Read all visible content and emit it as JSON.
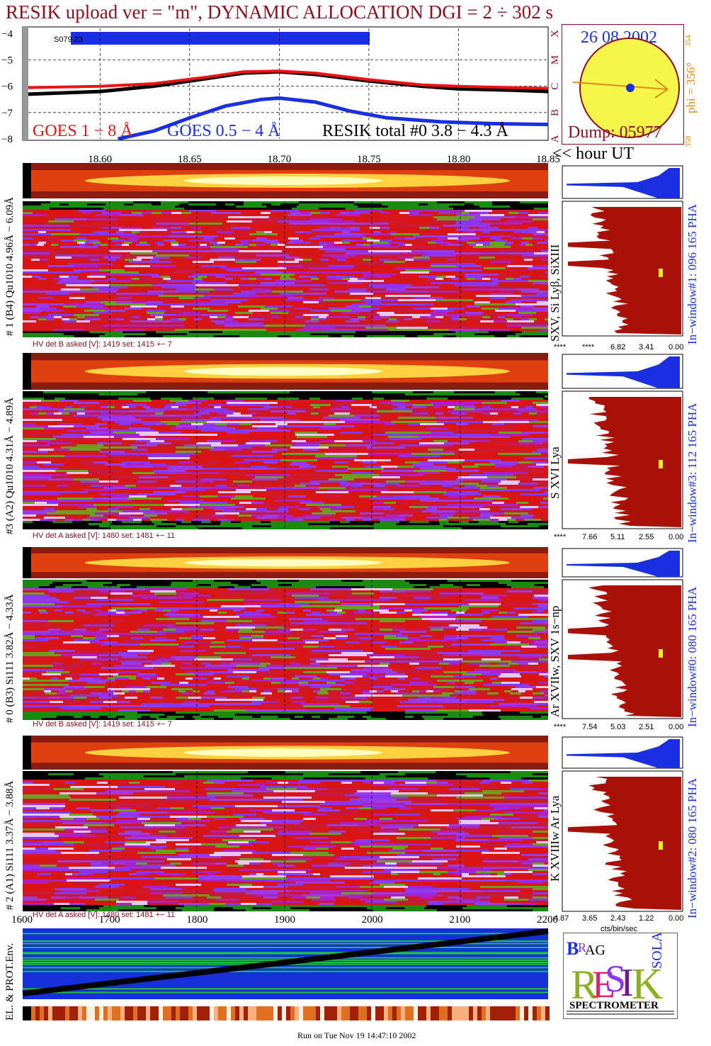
{
  "title": "RESIK upload ver = \"m\", DYNAMIC ALLOCATION  DGI =   2 ÷ 302 s",
  "colors": {
    "title": "#8b1020",
    "goes_long": "#ee1111",
    "goes_short": "#1a2fe0",
    "resik_total": "#000000",
    "spectrum_low": "#d81616",
    "spectrum_mid": "#8a35f0",
    "pha_fill_red": "#a81008",
    "pha_fill_blue": "#1a2fe0",
    "env_bg": "#1530d8",
    "sun_fill": "#f6f64a",
    "orange": "#e08a10"
  },
  "lightcurve": {
    "y_ticks": [
      "−4",
      "−5",
      "−6",
      "−7",
      "−8"
    ],
    "x_ticks": [
      "18.60",
      "18.65",
      "18.70",
      "18.75",
      "18.80",
      "18.85"
    ],
    "x_unit": "<< hour UT",
    "class_letters": [
      "X",
      "M",
      "C",
      "B",
      "A"
    ],
    "legend_goes_long": "GOES 1 − 8 Å",
    "legend_goes_short": "GOES 0.5 − 4 Å",
    "legend_resik": "RESIK total #0  3.8 − 4.3 Å",
    "bar_label": "S079 23"
  },
  "chart_data": {
    "type": "line",
    "xlabel": "hour UT",
    "ylabel": "",
    "xlim": [
      18.56,
      18.85
    ],
    "ylim": [
      -8,
      -3.8
    ],
    "series": [
      {
        "name": "GOES 1 − 8 Å",
        "x": [
          18.56,
          18.6,
          18.63,
          18.66,
          18.68,
          18.7,
          18.72,
          18.75,
          18.78,
          18.8,
          18.83,
          18.85
        ],
        "values": [
          -6.05,
          -6.0,
          -5.9,
          -5.65,
          -5.45,
          -5.42,
          -5.5,
          -5.75,
          -5.95,
          -6.0,
          -6.05,
          -6.08
        ]
      },
      {
        "name": "GOES 0.5 − 4 Å",
        "x": [
          18.61,
          18.63,
          18.65,
          18.67,
          18.69,
          18.7,
          18.72,
          18.74,
          18.76,
          18.79,
          18.82,
          18.85
        ],
        "values": [
          -8.0,
          -7.7,
          -7.2,
          -6.75,
          -6.5,
          -6.45,
          -6.6,
          -6.95,
          -7.2,
          -7.35,
          -7.42,
          -7.45
        ]
      },
      {
        "name": "RESIK total #0  3.8 − 4.3 Å",
        "x": [
          18.56,
          18.6,
          18.63,
          18.66,
          18.68,
          18.7,
          18.72,
          18.75,
          18.78,
          18.8,
          18.83,
          18.85
        ],
        "values": [
          -6.3,
          -6.2,
          -6.0,
          -5.7,
          -5.5,
          -5.45,
          -5.55,
          -5.8,
          -6.0,
          -6.1,
          -6.15,
          -6.2
        ]
      }
    ]
  },
  "sun_panel": {
    "date": "26 08 2002",
    "phi": "phi = 356°",
    "phi_small_top": "354",
    "phi_small_bottom": "358",
    "dump": "Dump: 05977"
  },
  "detectors": [
    {
      "axis_label": "# 1 (B4) Qu1010 4.96Å − 6.09Å",
      "line_label": "SXV, Si Lyβ, SiXIII",
      "window_label": "In−window#1:  096 165 PHA",
      "hv": "HV det B asked [V]:  1419 set:  1415 +−   7",
      "pha_ticks": [
        "****",
        "****",
        "6.82",
        "3.41",
        "0.00"
      ]
    },
    {
      "axis_label": "#3 (A2) Qu1010  4.31Å − 4.89Å",
      "line_label": "S XVI Lya",
      "window_label": "In−window#3:  112 165 PHA",
      "hv": "HV det A asked [V]:  1480 set:  1481 +−   11",
      "pha_ticks": [
        "****",
        "7.66",
        "5.11",
        "2.55",
        "0.00"
      ]
    },
    {
      "axis_label": "# 0 (B3) Si111  3.82Å − 4.33Å",
      "line_label": "Ar XVIIw,  SXV 1s−np",
      "window_label": "In−window#0:  080 165 PHA",
      "hv": "HV det B asked [V]:  1419 set:  1415 +−   7",
      "pha_ticks": [
        "****",
        "7.54",
        "5.03",
        "2.51",
        "0.00"
      ]
    },
    {
      "axis_label": "# 2 (A1) Si111  3.37Å − 3.88Å",
      "line_label": "K XVIIIw  Ar Lya",
      "window_label": "In−window#2:  080 165 PHA",
      "hv": "HV det A asked [V]:  1480 set:  1481 +−   11",
      "pha_ticks": [
        "4.87",
        "3.65",
        "2.43",
        "1.22",
        "0.00"
      ]
    }
  ],
  "pha_unit": "cts/bin/sec",
  "env": {
    "label": "EL. & PROT.Env.",
    "x_ticks": [
      "1600",
      "1700",
      "1800",
      "1900",
      "2000",
      "2100",
      "2200"
    ]
  },
  "logo": {
    "text": "SPECTROMETER",
    "letters": "RESIK",
    "bragg": "BRAGG",
    "solar": "SOLAR"
  },
  "footer": "Run on Tue Nov 19 14:47:10 2002"
}
